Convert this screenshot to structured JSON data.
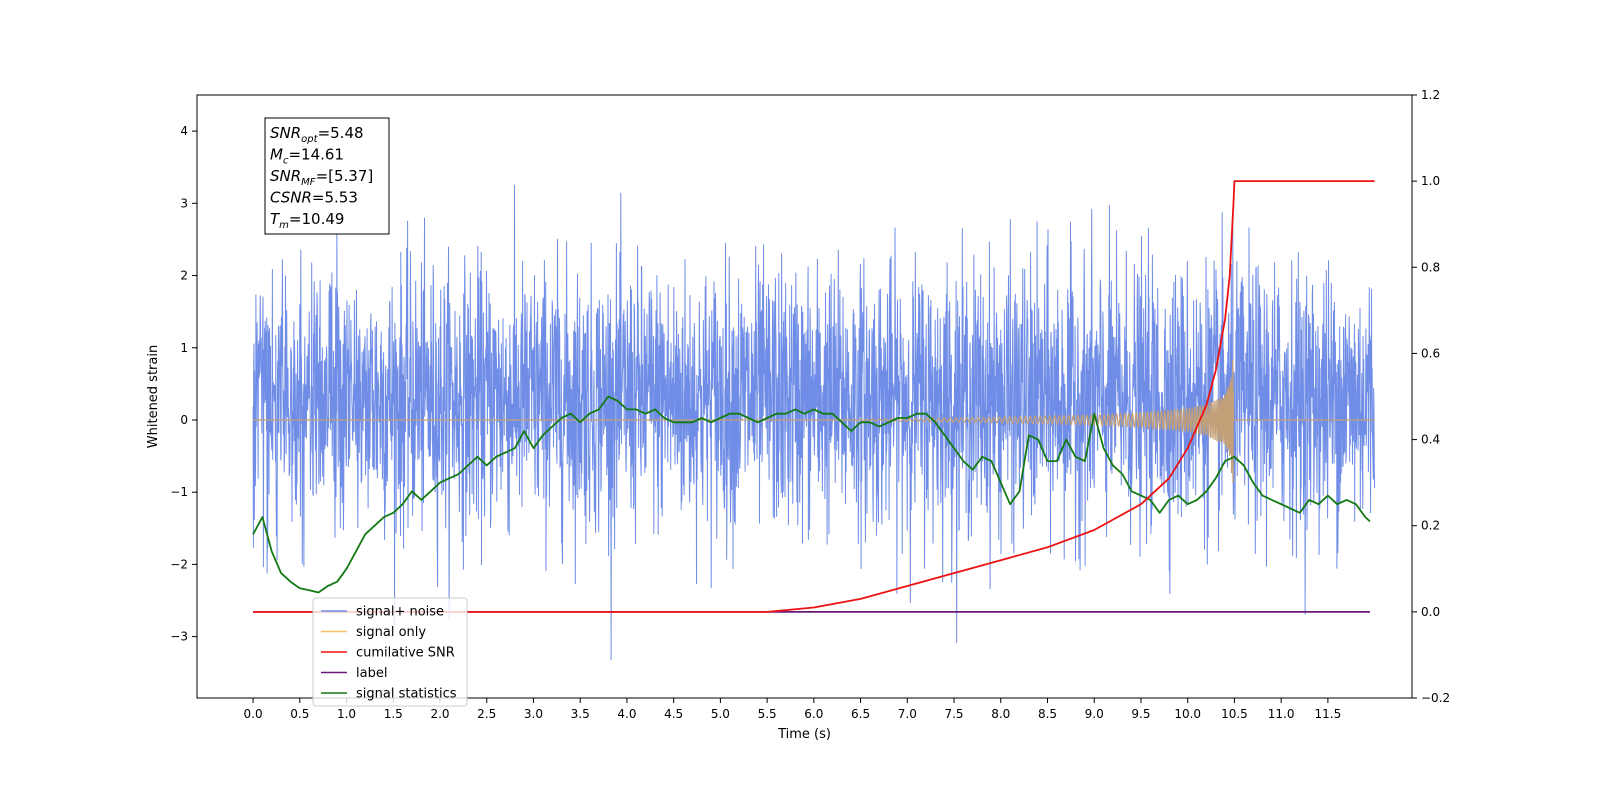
{
  "chart_data": {
    "type": "line",
    "title": "",
    "xlabel": "Time (s)",
    "ylabel": "Whitened strain",
    "xlim": [
      -0.6,
      12.4
    ],
    "ylim": [
      -3.85,
      4.5
    ],
    "y2lim": [
      -0.2,
      1.2
    ],
    "x_ticks": [
      "0.0",
      "0.5",
      "1.0",
      "1.5",
      "2.0",
      "2.5",
      "3.0",
      "3.5",
      "4.0",
      "4.5",
      "5.0",
      "5.5",
      "6.0",
      "6.5",
      "7.0",
      "7.5",
      "8.0",
      "8.5",
      "9.0",
      "9.5",
      "10.0",
      "10.5",
      "11.0",
      "11.5"
    ],
    "y_ticks": [
      "4",
      "3",
      "2",
      "1",
      "0",
      "−1",
      "−2",
      "−3"
    ],
    "y2_ticks": [
      "1.2",
      "1.0",
      "0.8",
      "0.6",
      "0.4",
      "0.2",
      "0.0",
      "−0.2"
    ],
    "grid": false,
    "legend_position": "lower-left",
    "colors": {
      "signal_noise": "#6f8de6",
      "signal_only": "#c4a078",
      "cumulative_snr": "#ee1111",
      "label": "#6a1a7a",
      "signal_statistics": "#137a13"
    },
    "series": [
      {
        "name": "signal+ noise",
        "axis": "left",
        "note_range": [
          -3.4,
          4.1
        ],
        "x_range": [
          0.0,
          12.0
        ]
      },
      {
        "name": "signal only",
        "axis": "left",
        "x": [
          0.0,
          6.0,
          7.0,
          8.0,
          9.0,
          9.5,
          10.0,
          10.2,
          10.4,
          10.45,
          10.49
        ],
        "envelope": [
          0.0,
          0.0,
          0.02,
          0.04,
          0.07,
          0.1,
          0.16,
          0.22,
          0.35,
          0.55,
          0.95
        ]
      },
      {
        "name": "cumilative SNR",
        "axis": "right",
        "x": [
          0.0,
          5.5,
          6.0,
          6.5,
          7.0,
          7.5,
          8.0,
          8.5,
          9.0,
          9.5,
          9.8,
          10.0,
          10.2,
          10.3,
          10.4,
          10.45,
          10.49,
          10.5,
          12.0
        ],
        "values": [
          0.0,
          0.0,
          0.01,
          0.03,
          0.06,
          0.09,
          0.12,
          0.15,
          0.19,
          0.25,
          0.31,
          0.38,
          0.48,
          0.56,
          0.68,
          0.78,
          0.95,
          1.0,
          1.0
        ]
      },
      {
        "name": "label",
        "axis": "right",
        "x": [
          0.0,
          11.95
        ],
        "values": [
          0.0,
          0.0
        ]
      },
      {
        "name": "signal statistics",
        "axis": "right",
        "x": [
          0.0,
          0.1,
          0.2,
          0.3,
          0.4,
          0.5,
          0.6,
          0.7,
          0.8,
          0.9,
          1.0,
          1.1,
          1.2,
          1.3,
          1.4,
          1.5,
          1.6,
          1.7,
          1.8,
          1.9,
          2.0,
          2.1,
          2.2,
          2.3,
          2.4,
          2.5,
          2.6,
          2.7,
          2.8,
          2.9,
          3.0,
          3.1,
          3.2,
          3.3,
          3.4,
          3.5,
          3.6,
          3.7,
          3.8,
          3.9,
          4.0,
          4.1,
          4.2,
          4.3,
          4.4,
          4.5,
          4.6,
          4.7,
          4.8,
          4.9,
          5.0,
          5.1,
          5.2,
          5.3,
          5.4,
          5.5,
          5.6,
          5.7,
          5.8,
          5.9,
          6.0,
          6.1,
          6.2,
          6.3,
          6.4,
          6.5,
          6.6,
          6.7,
          6.8,
          6.9,
          7.0,
          7.1,
          7.2,
          7.3,
          7.4,
          7.5,
          7.6,
          7.7,
          7.8,
          7.9,
          8.0,
          8.1,
          8.2,
          8.3,
          8.4,
          8.5,
          8.6,
          8.7,
          8.8,
          8.9,
          9.0,
          9.1,
          9.2,
          9.3,
          9.4,
          9.5,
          9.6,
          9.7,
          9.8,
          9.9,
          10.0,
          10.1,
          10.2,
          10.3,
          10.4,
          10.5,
          10.6,
          10.7,
          10.8,
          10.9,
          11.0,
          11.1,
          11.2,
          11.3,
          11.4,
          11.5,
          11.6,
          11.7,
          11.8,
          11.9,
          11.95
        ],
        "values": [
          0.18,
          0.22,
          0.14,
          0.09,
          0.07,
          0.055,
          0.05,
          0.045,
          0.06,
          0.07,
          0.1,
          0.14,
          0.18,
          0.2,
          0.22,
          0.23,
          0.25,
          0.28,
          0.26,
          0.28,
          0.3,
          0.31,
          0.32,
          0.34,
          0.36,
          0.34,
          0.36,
          0.37,
          0.38,
          0.42,
          0.38,
          0.41,
          0.43,
          0.45,
          0.46,
          0.44,
          0.46,
          0.47,
          0.5,
          0.49,
          0.47,
          0.47,
          0.46,
          0.47,
          0.45,
          0.44,
          0.44,
          0.44,
          0.45,
          0.44,
          0.45,
          0.46,
          0.46,
          0.45,
          0.44,
          0.45,
          0.46,
          0.46,
          0.47,
          0.46,
          0.47,
          0.46,
          0.46,
          0.44,
          0.42,
          0.44,
          0.44,
          0.43,
          0.44,
          0.45,
          0.45,
          0.46,
          0.46,
          0.44,
          0.41,
          0.38,
          0.35,
          0.33,
          0.36,
          0.35,
          0.3,
          0.25,
          0.28,
          0.41,
          0.4,
          0.35,
          0.35,
          0.4,
          0.36,
          0.35,
          0.46,
          0.38,
          0.34,
          0.32,
          0.28,
          0.27,
          0.26,
          0.23,
          0.26,
          0.27,
          0.25,
          0.26,
          0.28,
          0.31,
          0.35,
          0.36,
          0.34,
          0.3,
          0.27,
          0.26,
          0.25,
          0.24,
          0.23,
          0.26,
          0.25,
          0.27,
          0.25,
          0.26,
          0.25,
          0.22,
          0.21
        ]
      }
    ],
    "annotation_box": [
      {
        "main": "SNR",
        "sub": "opt",
        "rest": "=5.48"
      },
      {
        "main": "M",
        "sub": "c",
        "rest": "=14.61"
      },
      {
        "main": "SNR",
        "sub": "MF",
        "rest": "=[5.37]"
      },
      {
        "main": "CSNR",
        "sub": "",
        "rest": "=5.53"
      },
      {
        "main": "T",
        "sub": "m",
        "rest": "=10.49"
      }
    ],
    "legend": [
      {
        "label": "signal+ noise",
        "color": "#6f8de6"
      },
      {
        "label": "signal only",
        "color": "#f5c06b"
      },
      {
        "label": "cumilative SNR",
        "color": "#ee1111"
      },
      {
        "label": "label",
        "color": "#6a1a7a"
      },
      {
        "label": "signal statistics",
        "color": "#137a13"
      }
    ]
  }
}
